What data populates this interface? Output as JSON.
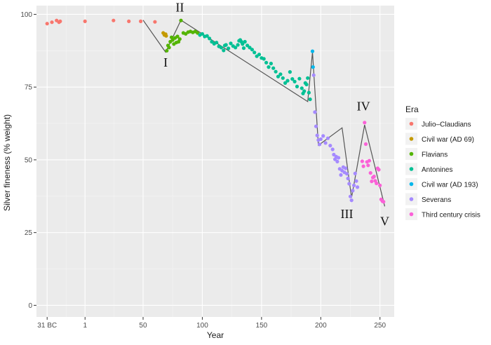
{
  "chart_data": {
    "type": "scatter",
    "xlabel": "Year",
    "ylabel": "Silver fineness (% weight)",
    "xlim": [
      -40,
      262
    ],
    "ylim": [
      -4,
      103
    ],
    "x_ticks": [
      {
        "value": -31,
        "label": "31 BC"
      },
      {
        "value": 1,
        "label": "1"
      },
      {
        "value": 50,
        "label": "50"
      },
      {
        "value": 100,
        "label": "100"
      },
      {
        "value": 150,
        "label": "150"
      },
      {
        "value": 200,
        "label": "200"
      },
      {
        "value": 250,
        "label": "250"
      }
    ],
    "y_ticks": [
      {
        "value": 0,
        "label": "0"
      },
      {
        "value": 25,
        "label": "25"
      },
      {
        "value": 50,
        "label": "50"
      },
      {
        "value": 75,
        "label": "75"
      },
      {
        "value": 100,
        "label": "100"
      }
    ],
    "grid": true,
    "legend": {
      "title": "Era",
      "position": "right"
    },
    "series": [
      {
        "name": "Julio–Claudians",
        "color": "#F8766D",
        "points": [
          [
            -31,
            96.8
          ],
          [
            -27,
            97.3
          ],
          [
            -23,
            97.9
          ],
          [
            -21,
            97.3
          ],
          [
            -20,
            97.6
          ],
          [
            1,
            97.6
          ],
          [
            25,
            97.9
          ],
          [
            38,
            97.6
          ],
          [
            48,
            97.6
          ],
          [
            60,
            97.4
          ]
        ]
      },
      {
        "name": "Civil war (AD 69)",
        "color": "#C49A00",
        "points": [
          [
            67,
            93.6
          ],
          [
            68,
            92.9
          ],
          [
            69,
            93.2
          ],
          [
            69.5,
            92.6
          ]
        ]
      },
      {
        "name": "Flavians",
        "color": "#53B400",
        "points": [
          [
            70,
            87.5
          ],
          [
            71,
            89.3
          ],
          [
            72,
            88.6
          ],
          [
            73,
            90.6
          ],
          [
            74,
            92.1
          ],
          [
            75,
            91.2
          ],
          [
            76,
            89.8
          ],
          [
            77,
            91.9
          ],
          [
            78,
            90.3
          ],
          [
            79,
            92.4
          ],
          [
            80,
            90.6
          ],
          [
            81,
            91.5
          ],
          [
            82,
            97.9
          ],
          [
            84,
            93.6
          ],
          [
            86,
            93.3
          ],
          [
            88,
            93.9
          ],
          [
            90,
            94.1
          ],
          [
            92,
            93.8
          ],
          [
            94,
            94.1
          ],
          [
            96,
            93.6
          ]
        ]
      },
      {
        "name": "Antonines",
        "color": "#00C094",
        "points": [
          [
            98,
            92.9
          ],
          [
            100,
            93.3
          ],
          [
            102,
            92.4
          ],
          [
            104,
            92.6
          ],
          [
            106,
            91.7
          ],
          [
            108,
            90.6
          ],
          [
            110,
            89.9
          ],
          [
            112,
            90.3
          ],
          [
            114,
            89.0
          ],
          [
            116,
            88.6
          ],
          [
            118,
            87.6
          ],
          [
            119,
            89.3
          ],
          [
            120,
            89.5
          ],
          [
            122,
            88.3
          ],
          [
            124,
            90.0
          ],
          [
            126,
            89.1
          ],
          [
            128,
            88.6
          ],
          [
            130,
            89.5
          ],
          [
            131,
            90.9
          ],
          [
            132,
            91.2
          ],
          [
            133,
            90.6
          ],
          [
            134,
            89.8
          ],
          [
            135,
            88.4
          ],
          [
            136,
            90.6
          ],
          [
            138,
            89.3
          ],
          [
            140,
            88.6
          ],
          [
            142,
            87.9
          ],
          [
            144,
            86.9
          ],
          [
            146,
            85.6
          ],
          [
            148,
            86.2
          ],
          [
            150,
            85.0
          ],
          [
            152,
            84.7
          ],
          [
            154,
            83.4
          ],
          [
            156,
            81.9
          ],
          [
            158,
            83.1
          ],
          [
            160,
            81.5
          ],
          [
            162,
            80.3
          ],
          [
            164,
            78.6
          ],
          [
            166,
            79.4
          ],
          [
            168,
            78.1
          ],
          [
            170,
            76.4
          ],
          [
            172,
            77.2
          ],
          [
            174,
            80.2
          ],
          [
            176,
            77.8
          ],
          [
            178,
            76.9
          ],
          [
            180,
            75.2
          ],
          [
            182,
            77.9
          ],
          [
            184,
            74.6
          ],
          [
            185,
            72.8
          ],
          [
            186,
            73.6
          ],
          [
            187,
            76.4
          ],
          [
            188,
            75.9
          ],
          [
            189,
            78.1
          ],
          [
            190,
            73.1
          ],
          [
            191,
            70.8
          ]
        ]
      },
      {
        "name": "Civil war (AD 193)",
        "color": "#00B6EB",
        "points": [
          [
            193,
            87.3
          ],
          [
            193.5,
            81.9
          ]
        ]
      },
      {
        "name": "Severans",
        "color": "#A58AFF",
        "points": [
          [
            194,
            79.1
          ],
          [
            195,
            66.4
          ],
          [
            196,
            61.5
          ],
          [
            197,
            58.4
          ],
          [
            198,
            56.8
          ],
          [
            199,
            55.3
          ],
          [
            200,
            57.1
          ],
          [
            202,
            58.2
          ],
          [
            204,
            55.8
          ],
          [
            206,
            57.4
          ],
          [
            208,
            54.9
          ],
          [
            210,
            53.6
          ],
          [
            211,
            51.8
          ],
          [
            212,
            50.2
          ],
          [
            213,
            51.1
          ],
          [
            214,
            49.4
          ],
          [
            215,
            50.7
          ],
          [
            216,
            46.9
          ],
          [
            217,
            44.8
          ],
          [
            218,
            46.3
          ],
          [
            219,
            47.5
          ],
          [
            220,
            45.7
          ],
          [
            221,
            47.1
          ],
          [
            222,
            45.2
          ],
          [
            223,
            43.6
          ],
          [
            224,
            41.8
          ],
          [
            225,
            37.4
          ],
          [
            226,
            36.1
          ],
          [
            227,
            39.4
          ],
          [
            228,
            41.2
          ],
          [
            229,
            45.3
          ],
          [
            230,
            42.7
          ],
          [
            231,
            40.6
          ]
        ]
      },
      {
        "name": "Third century crisis",
        "color": "#FB61D7",
        "points": [
          [
            235,
            49.5
          ],
          [
            236,
            47.8
          ],
          [
            237,
            62.8
          ],
          [
            238,
            55.4
          ],
          [
            239,
            49.3
          ],
          [
            240,
            48.1
          ],
          [
            241,
            49.7
          ],
          [
            242,
            45.5
          ],
          [
            243,
            42.6
          ],
          [
            244,
            43.9
          ],
          [
            245,
            44.3
          ],
          [
            246,
            42.8
          ],
          [
            247,
            41.9
          ],
          [
            248,
            47.1
          ],
          [
            249,
            46.6
          ],
          [
            250,
            41.2
          ],
          [
            251,
            36.4
          ],
          [
            252,
            35.8
          ],
          [
            253,
            35.6
          ]
        ]
      }
    ],
    "trend_line": [
      [
        50,
        98
      ],
      [
        69,
        87
      ],
      [
        82,
        98
      ],
      [
        189,
        70
      ],
      [
        193,
        87
      ],
      [
        198,
        55
      ],
      [
        218,
        61
      ],
      [
        226,
        37
      ],
      [
        237,
        62
      ],
      [
        254,
        34
      ]
    ],
    "annotations": [
      {
        "label": "I",
        "x": 69,
        "y": 82
      },
      {
        "label": "II",
        "x": 81,
        "y": 101
      },
      {
        "label": "III",
        "x": 222,
        "y": 30
      },
      {
        "label": "IV",
        "x": 236,
        "y": 67
      },
      {
        "label": "V",
        "x": 254,
        "y": 27.5
      }
    ]
  }
}
